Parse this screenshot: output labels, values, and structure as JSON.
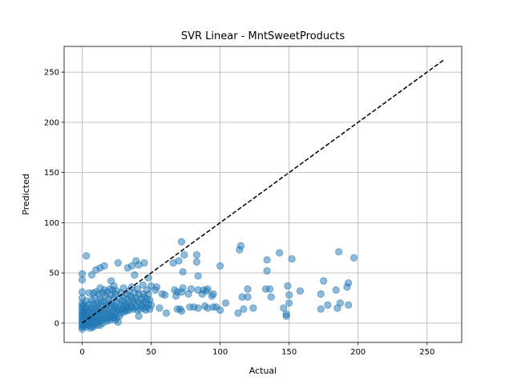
{
  "chart_data": {
    "type": "scatter",
    "title": "SVR Linear - MntSweetProducts",
    "xlabel": "Actual",
    "ylabel": "Predicted",
    "xlim": [
      -13.1,
      275.1
    ],
    "ylim": [
      -19.2,
      275.6
    ],
    "xticks": [
      0,
      50,
      100,
      150,
      200,
      250
    ],
    "yticks": [
      0,
      50,
      100,
      150,
      200,
      250
    ],
    "grid": true,
    "point_color": "#1f77b4",
    "reference_line": {
      "style": "dashed",
      "color": "#000000",
      "from": [
        0,
        0
      ],
      "to": [
        262,
        262
      ]
    },
    "points": [
      [
        0,
        49
      ],
      [
        0,
        43
      ],
      [
        0,
        31
      ],
      [
        0,
        25
      ],
      [
        0,
        20
      ],
      [
        0,
        17
      ],
      [
        0,
        15
      ],
      [
        0,
        12
      ],
      [
        0,
        10
      ],
      [
        0,
        8
      ],
      [
        0,
        6
      ],
      [
        0,
        4
      ],
      [
        0,
        2
      ],
      [
        0,
        0
      ],
      [
        0,
        -2
      ],
      [
        0,
        -4
      ],
      [
        0,
        -6
      ],
      [
        1,
        18
      ],
      [
        1,
        11
      ],
      [
        1,
        5
      ],
      [
        1,
        -3
      ],
      [
        2,
        14
      ],
      [
        2,
        8
      ],
      [
        2,
        3
      ],
      [
        2,
        -1
      ],
      [
        3,
        67
      ],
      [
        3,
        22
      ],
      [
        3,
        16
      ],
      [
        3,
        9
      ],
      [
        3,
        1
      ],
      [
        3,
        -4
      ],
      [
        4,
        12
      ],
      [
        4,
        6
      ],
      [
        4,
        -2
      ],
      [
        5,
        30
      ],
      [
        5,
        19
      ],
      [
        5,
        11
      ],
      [
        5,
        4
      ],
      [
        5,
        -1
      ],
      [
        6,
        15
      ],
      [
        6,
        7
      ],
      [
        6,
        0
      ],
      [
        6,
        -5
      ],
      [
        7,
        48
      ],
      [
        7,
        23
      ],
      [
        7,
        13
      ],
      [
        7,
        4
      ],
      [
        7,
        -3
      ],
      [
        8,
        30
      ],
      [
        8,
        19
      ],
      [
        8,
        10
      ],
      [
        8,
        3
      ],
      [
        8,
        -4
      ],
      [
        9,
        25
      ],
      [
        9,
        14
      ],
      [
        9,
        6
      ],
      [
        9,
        -1
      ],
      [
        10,
        53
      ],
      [
        10,
        31
      ],
      [
        10,
        18
      ],
      [
        10,
        9
      ],
      [
        10,
        2
      ],
      [
        11,
        20
      ],
      [
        11,
        12
      ],
      [
        11,
        5
      ],
      [
        11,
        -2
      ],
      [
        12,
        29
      ],
      [
        12,
        16
      ],
      [
        12,
        8
      ],
      [
        12,
        1
      ],
      [
        13,
        55
      ],
      [
        13,
        35
      ],
      [
        13,
        24
      ],
      [
        13,
        13
      ],
      [
        13,
        5
      ],
      [
        13,
        -2
      ],
      [
        14,
        22
      ],
      [
        14,
        11
      ],
      [
        14,
        3
      ],
      [
        15,
        30
      ],
      [
        15,
        17
      ],
      [
        15,
        8
      ],
      [
        15,
        0
      ],
      [
        16,
        57
      ],
      [
        16,
        33
      ],
      [
        16,
        21
      ],
      [
        16,
        12
      ],
      [
        16,
        4
      ],
      [
        17,
        27
      ],
      [
        17,
        15
      ],
      [
        17,
        6
      ],
      [
        18,
        31
      ],
      [
        18,
        18
      ],
      [
        18,
        9
      ],
      [
        18,
        2
      ],
      [
        19,
        24
      ],
      [
        19,
        13
      ],
      [
        19,
        5
      ],
      [
        20,
        34
      ],
      [
        20,
        20
      ],
      [
        20,
        10
      ],
      [
        20,
        3
      ],
      [
        21,
        42
      ],
      [
        21,
        28
      ],
      [
        21,
        16
      ],
      [
        21,
        7
      ],
      [
        22,
        33
      ],
      [
        22,
        19
      ],
      [
        22,
        11
      ],
      [
        22,
        5
      ],
      [
        23,
        37
      ],
      [
        23,
        25
      ],
      [
        23,
        14
      ],
      [
        23,
        6
      ],
      [
        24,
        29
      ],
      [
        24,
        17
      ],
      [
        24,
        9
      ],
      [
        24,
        3
      ],
      [
        25,
        32
      ],
      [
        25,
        21
      ],
      [
        25,
        12
      ],
      [
        25,
        5
      ],
      [
        26,
        60
      ],
      [
        26,
        15
      ],
      [
        26,
        1
      ],
      [
        27,
        24
      ],
      [
        27,
        13
      ],
      [
        27,
        7
      ],
      [
        28,
        30
      ],
      [
        28,
        18
      ],
      [
        28,
        10
      ],
      [
        29,
        22
      ],
      [
        29,
        14
      ],
      [
        30,
        35
      ],
      [
        30,
        26
      ],
      [
        30,
        17
      ],
      [
        30,
        11
      ],
      [
        31,
        20
      ],
      [
        31,
        13
      ],
      [
        32,
        29
      ],
      [
        32,
        18
      ],
      [
        32,
        12
      ],
      [
        33,
        55
      ],
      [
        33,
        24
      ],
      [
        33,
        15
      ],
      [
        34,
        32
      ],
      [
        34,
        21
      ],
      [
        34,
        13
      ],
      [
        35,
        27
      ],
      [
        35,
        17
      ],
      [
        36,
        57
      ],
      [
        36,
        36
      ],
      [
        36,
        25
      ],
      [
        36,
        16
      ],
      [
        37,
        22
      ],
      [
        37,
        14
      ],
      [
        38,
        48
      ],
      [
        38,
        30
      ],
      [
        38,
        19
      ],
      [
        39,
        62
      ],
      [
        39,
        25
      ],
      [
        39,
        16
      ],
      [
        40,
        34
      ],
      [
        40,
        22
      ],
      [
        40,
        13
      ],
      [
        41,
        58
      ],
      [
        41,
        29
      ],
      [
        41,
        7
      ],
      [
        42,
        20
      ],
      [
        42,
        14
      ],
      [
        43,
        24
      ],
      [
        43,
        17
      ],
      [
        44,
        38
      ],
      [
        44,
        29
      ],
      [
        44,
        19
      ],
      [
        45,
        60
      ],
      [
        45,
        26
      ],
      [
        45,
        15
      ],
      [
        46,
        21
      ],
      [
        46,
        13
      ],
      [
        47,
        33
      ],
      [
        47,
        24
      ],
      [
        47,
        16
      ],
      [
        48,
        45
      ],
      [
        48,
        29
      ],
      [
        48,
        19
      ],
      [
        49,
        23
      ],
      [
        49,
        14
      ],
      [
        50,
        37
      ],
      [
        50,
        18
      ],
      [
        53,
        33
      ],
      [
        54,
        36
      ],
      [
        56,
        15
      ],
      [
        58,
        29
      ],
      [
        60,
        28
      ],
      [
        61,
        10
      ],
      [
        66,
        60
      ],
      [
        67,
        33
      ],
      [
        68,
        27
      ],
      [
        69,
        31
      ],
      [
        69,
        14
      ],
      [
        70,
        62
      ],
      [
        71,
        14
      ],
      [
        72,
        81
      ],
      [
        72,
        31
      ],
      [
        72,
        12
      ],
      [
        73,
        35
      ],
      [
        73,
        51
      ],
      [
        74,
        68
      ],
      [
        77,
        29
      ],
      [
        78,
        16
      ],
      [
        79,
        34
      ],
      [
        81,
        16
      ],
      [
        83,
        68
      ],
      [
        83,
        61
      ],
      [
        84,
        47
      ],
      [
        84,
        33
      ],
      [
        84,
        15
      ],
      [
        87,
        29
      ],
      [
        88,
        33
      ],
      [
        89,
        17
      ],
      [
        90,
        32
      ],
      [
        91,
        34
      ],
      [
        91,
        15
      ],
      [
        94,
        27
      ],
      [
        95,
        29
      ],
      [
        95,
        16
      ],
      [
        97,
        16
      ],
      [
        100,
        57
      ],
      [
        100,
        13
      ],
      [
        104,
        20
      ],
      [
        113,
        10
      ],
      [
        114,
        73
      ],
      [
        115,
        77
      ],
      [
        116,
        26
      ],
      [
        117,
        14
      ],
      [
        120,
        26
      ],
      [
        120,
        34
      ],
      [
        124,
        15
      ],
      [
        133,
        34
      ],
      [
        134,
        63
      ],
      [
        134,
        52
      ],
      [
        136,
        34
      ],
      [
        137,
        26
      ],
      [
        143,
        70
      ],
      [
        146,
        15
      ],
      [
        148,
        7
      ],
      [
        148,
        9
      ],
      [
        149,
        37
      ],
      [
        150,
        28
      ],
      [
        150,
        20
      ],
      [
        152,
        64
      ],
      [
        158,
        32
      ],
      [
        173,
        14
      ],
      [
        173,
        29
      ],
      [
        175,
        42
      ],
      [
        178,
        18
      ],
      [
        184,
        33
      ],
      [
        185,
        15
      ],
      [
        186,
        71
      ],
      [
        187,
        20
      ],
      [
        192,
        36
      ],
      [
        193,
        40
      ],
      [
        193,
        18
      ],
      [
        197,
        65
      ]
    ]
  }
}
